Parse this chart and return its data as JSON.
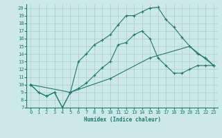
{
  "xlabel": "Humidex (Indice chaleur)",
  "bg_color": "#cce8e8",
  "line_color": "#1a7a6e",
  "grid_color": "#aacccc",
  "xlim": [
    -0.5,
    23.5
  ],
  "ylim": [
    7,
    20.5
  ],
  "xticks": [
    0,
    1,
    2,
    3,
    4,
    5,
    6,
    7,
    8,
    9,
    10,
    11,
    12,
    13,
    14,
    15,
    16,
    17,
    18,
    19,
    20,
    21,
    22,
    23
  ],
  "yticks": [
    7,
    8,
    9,
    10,
    11,
    12,
    13,
    14,
    15,
    16,
    17,
    18,
    19,
    20
  ],
  "line1_x": [
    0,
    1,
    2,
    3,
    4,
    5,
    6,
    7,
    8,
    9,
    10,
    11,
    12,
    13,
    14,
    15,
    16,
    17,
    18,
    19,
    20,
    21,
    22,
    23
  ],
  "line1_y": [
    10,
    9,
    8.5,
    9,
    7,
    9,
    13,
    14,
    15.2,
    15.8,
    16.5,
    17.8,
    19.0,
    19.0,
    19.5,
    20.0,
    20.1,
    18.5,
    17.5,
    16.2,
    15.0,
    14.0,
    13.5,
    12.5
  ],
  "line2_x": [
    0,
    1,
    2,
    3,
    4,
    5,
    6,
    7,
    8,
    9,
    10,
    11,
    12,
    13,
    14,
    15,
    16,
    17,
    18,
    19,
    20,
    21,
    22,
    23
  ],
  "line2_y": [
    10,
    9,
    8.5,
    9,
    7,
    9,
    9.5,
    10.2,
    11.2,
    12.2,
    13.0,
    15.2,
    15.5,
    16.5,
    17.0,
    16.0,
    13.5,
    12.5,
    11.5,
    11.5,
    12.0,
    12.5,
    12.5,
    12.5
  ],
  "line3_x": [
    0,
    5,
    10,
    15,
    20,
    23
  ],
  "line3_y": [
    10,
    9.0,
    10.8,
    13.5,
    15.0,
    12.5
  ]
}
